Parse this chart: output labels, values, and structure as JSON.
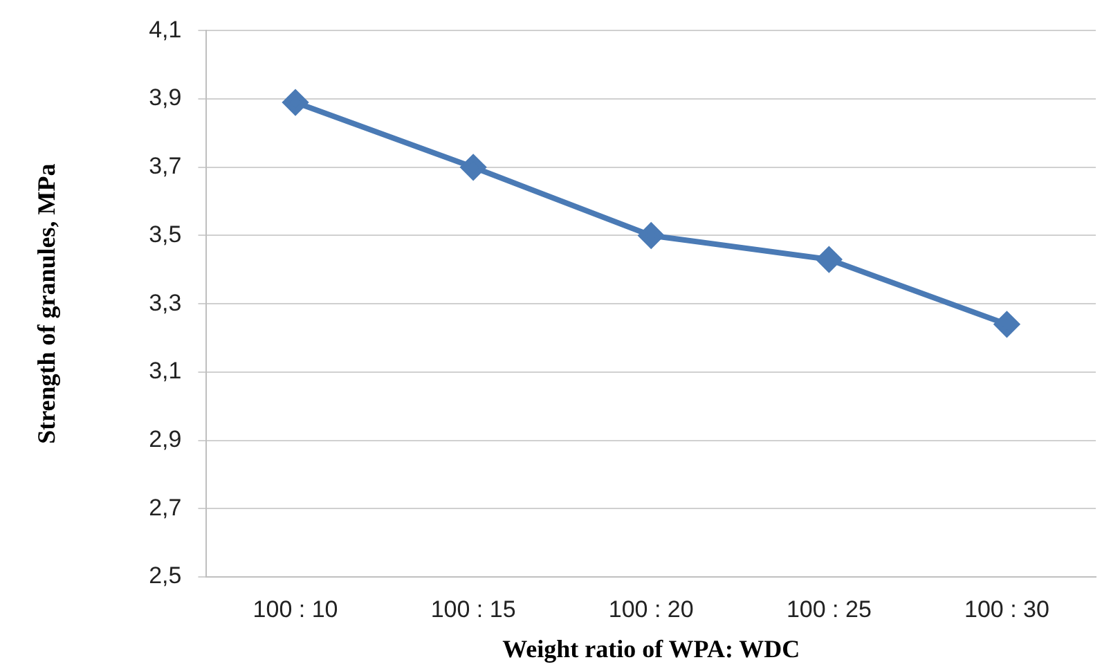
{
  "chart_data": {
    "type": "line",
    "xlabel": "Weight ratio of WPA: WDC",
    "ylabel": "Strength of granules, MPa",
    "categories": [
      "100 : 10",
      "100 : 15",
      "100 : 20",
      "100 : 25",
      "100 : 30"
    ],
    "series": [
      {
        "color": "#4a7ab5",
        "values": [
          3.89,
          3.7,
          3.5,
          3.43,
          3.24
        ]
      }
    ],
    "ylim": [
      2.5,
      4.1
    ],
    "yticks": [
      {
        "value": 2.5,
        "label": "2,5"
      },
      {
        "value": 2.7,
        "label": "2,7"
      },
      {
        "value": 2.9,
        "label": "2,9"
      },
      {
        "value": 3.1,
        "label": "3,1"
      },
      {
        "value": 3.3,
        "label": "3,3"
      },
      {
        "value": 3.5,
        "label": "3,5"
      },
      {
        "value": 3.7,
        "label": "3,7"
      },
      {
        "value": 3.9,
        "label": "3,9"
      },
      {
        "value": 4.1,
        "label": "4,1"
      }
    ],
    "grid": "y",
    "legend": false,
    "marker": "diamond",
    "line_style": "solid"
  }
}
